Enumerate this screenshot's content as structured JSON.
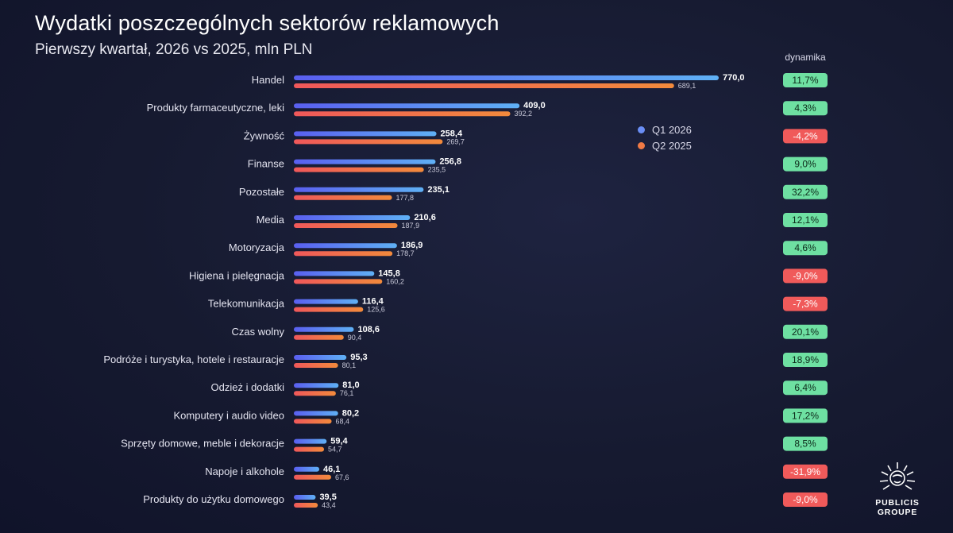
{
  "header": {
    "title": "Wydatki poszczególnych sektorów reklamowych",
    "subtitle": "Pierwszy kwartał, 2026 vs 2025, mln PLN",
    "dynamics_label": "dynamika"
  },
  "legend": [
    {
      "label": "Q1 2026",
      "color": "#5b6cf0"
    },
    {
      "label": "Q2 2025",
      "color": "#f0604a"
    }
  ],
  "logo": {
    "line1": "PUBLICIS",
    "line2": "GROUPE",
    "icon": "publicis-lion-icon"
  },
  "colors": {
    "positive_badge": "#6ee0a2",
    "negative_badge": "#f05a5a",
    "background": "#161a30"
  },
  "chart_data": {
    "type": "bar",
    "orientation": "horizontal",
    "title": "Wydatki poszczególnych sektorów reklamowych",
    "subtitle": "Pierwszy kwartał, 2026 vs 2025, mln PLN",
    "categories": [
      "Handel",
      "Produkty farmaceutyczne, leki",
      "Żywność",
      "Finanse",
      "Pozostałe",
      "Media",
      "Motoryzacja",
      "Higiena i pielęgnacja",
      "Telekomunikacja",
      "Czas wolny",
      "Podróże i turystyka, hotele i restauracje",
      "Odzież i dodatki",
      "Komputery i audio video",
      "Sprzęty domowe, meble i dekoracje",
      "Napoje i alkohole",
      "Produkty do użytku domowego"
    ],
    "series": [
      {
        "name": "Q1 2026",
        "color": "#5b6cf0",
        "values": [
          770.0,
          409.0,
          258.4,
          256.8,
          235.1,
          210.6,
          186.9,
          145.8,
          116.4,
          108.6,
          95.3,
          81.0,
          80.2,
          59.4,
          46.1,
          39.5
        ],
        "labels": [
          "770,0",
          "409,0",
          "258,4",
          "256,8",
          "235,1",
          "210,6",
          "186,9",
          "145,8",
          "116,4",
          "108,6",
          "95,3",
          "81,0",
          "80,2",
          "59,4",
          "46,1",
          "39,5"
        ]
      },
      {
        "name": "Q2 2025",
        "color": "#f0604a",
        "values": [
          689.1,
          392.2,
          269.7,
          235.5,
          177.8,
          187.9,
          178.7,
          160.2,
          125.6,
          90.4,
          80.1,
          76.1,
          68.4,
          54.7,
          67.6,
          43.4
        ],
        "labels": [
          "689,1",
          "392,2",
          "269,7",
          "235,5",
          "177,8",
          "187,9",
          "178,7",
          "160,2",
          "125,6",
          "90,4",
          "80,1",
          "76,1",
          "68,4",
          "54,7",
          "67,6",
          "43,4"
        ]
      }
    ],
    "dynamics": [
      "11,7%",
      "4,3%",
      "-4,2%",
      "9,0%",
      "32,2%",
      "12,1%",
      "4,6%",
      "-9,0%",
      "-7,3%",
      "20,1%",
      "18,9%",
      "6,4%",
      "17,2%",
      "8,5%",
      "-31,9%",
      "-9,0%"
    ],
    "dynamics_sign": [
      1,
      1,
      -1,
      1,
      1,
      1,
      1,
      -1,
      -1,
      1,
      1,
      1,
      1,
      1,
      -1,
      -1
    ],
    "xlim": [
      0,
      770
    ],
    "grid": false,
    "legend_position": "right"
  }
}
